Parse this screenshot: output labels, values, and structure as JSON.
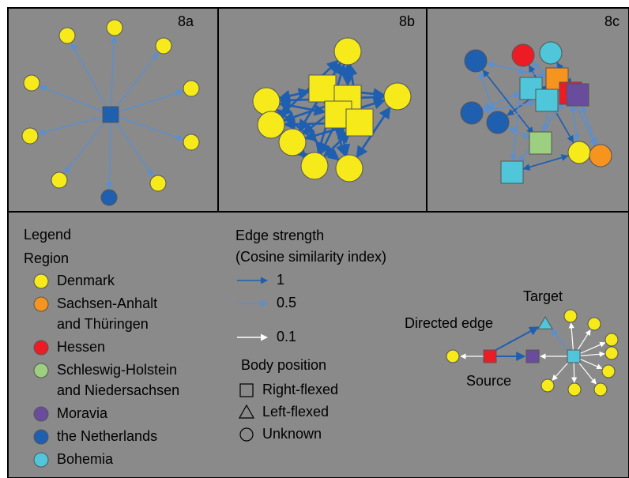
{
  "panels": [
    {
      "label": "8a"
    },
    {
      "label": "8b"
    },
    {
      "label": "8c"
    }
  ],
  "legend": {
    "title": "Legend",
    "region_title": "Region",
    "regions": [
      {
        "lines": [
          "Denmark"
        ],
        "color": "#f6ea1a"
      },
      {
        "lines": [
          "Sachsen-Anhalt",
          "and Thüringen"
        ],
        "color": "#f7941d"
      },
      {
        "lines": [
          "Hessen"
        ],
        "color": "#ed1c24"
      },
      {
        "lines": [
          "Schleswig-Holstein",
          "and Niedersachsen"
        ],
        "color": "#9ccf7f"
      },
      {
        "lines": [
          "Moravia"
        ],
        "color": "#6a4c9c"
      },
      {
        "lines": [
          "the Netherlands"
        ],
        "color": "#1f5fb0"
      },
      {
        "lines": [
          "Bohemia"
        ],
        "color": "#4fc6d9"
      }
    ],
    "edge_title": [
      "Edge strength",
      "(Cosine similarity index)"
    ],
    "edges": [
      {
        "label": "1",
        "color": "#1f5fb0"
      },
      {
        "label": "0.5",
        "color": "#5b8fd0"
      },
      {
        "label": "0.1",
        "color": "#ffffff"
      }
    ],
    "body_title": "Body position",
    "body": [
      "Right-flexed",
      "Left-flexed",
      "Unknown"
    ]
  },
  "example": {
    "target": "Target",
    "edge": "Directed edge",
    "source": "Source"
  }
}
